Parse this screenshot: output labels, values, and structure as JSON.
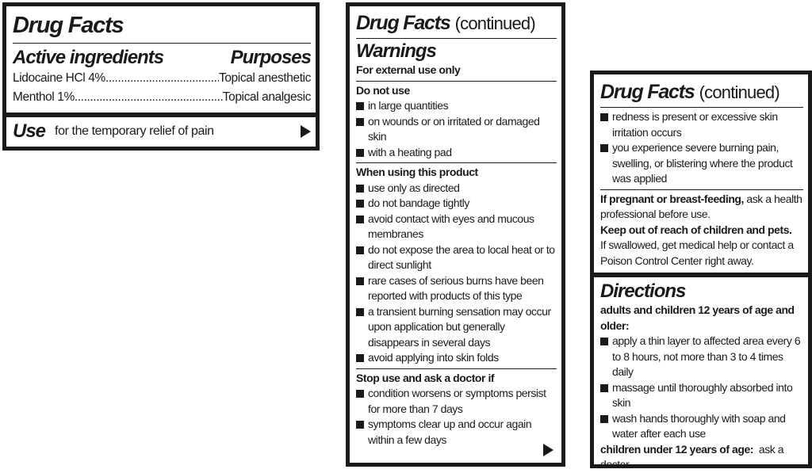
{
  "panel1": {
    "title": "Drug Facts",
    "active_heading": "Active ingredients",
    "purposes_heading": "Purposes",
    "ingredients": [
      {
        "name": "Lidocaine HCl 4%",
        "purpose": "Topical anesthetic"
      },
      {
        "name": "Menthol 1%",
        "purpose": "Topical analgesic"
      }
    ],
    "use_heading": "Use",
    "use_text": "for the temporary relief of pain"
  },
  "panel2": {
    "title": "Drug Facts",
    "continued": "(continued)",
    "warnings_heading": "Warnings",
    "external": "For external use only",
    "do_not_use_heading": "Do not use",
    "do_not_use": [
      "in large quantities",
      "on wounds or on irritated or damaged skin",
      "with a heating pad"
    ],
    "when_using_heading": "When using this product",
    "when_using": [
      "use only as directed",
      "do not bandage tightly",
      "avoid contact with eyes and mucous membranes",
      "do not expose the area to local heat or to direct sunlight",
      "rare cases of serious burns have been reported with products of this type",
      "a transient burning sensation may occur upon application but generally disappears in several days",
      "avoid applying into skin folds"
    ],
    "stop_use_heading": "Stop use and ask a doctor if",
    "stop_use": [
      "condition worsens or symptoms persist for more than 7 days",
      "symptoms clear up and occur again within a few days"
    ]
  },
  "panel3": {
    "title": "Drug Facts",
    "continued": "(continued)",
    "stop_use_cont": [
      "redness is present or excessive skin irritation occurs",
      "you experience severe burning pain, swelling, or blistering where the product was applied"
    ],
    "pregnant_bold": "If pregnant or breast-feeding,",
    "pregnant_text": "ask a health professional before use.",
    "keep_out": "Keep out of reach of children and pets.",
    "swallowed": "If swallowed, get medical help or contact a Poison Control Center right away.",
    "directions_heading": "Directions",
    "adults_heading": "adults and children 12 years of age and older:",
    "adults": [
      "apply a thin layer to affected area every 6 to 8 hours, not more than 3 to 4 times daily",
      "massage until thoroughly absorbed into skin",
      "wash hands thoroughly with soap and water after each use"
    ],
    "children_bold": "children under 12 years of age:",
    "children_text": "ask a doctor"
  }
}
